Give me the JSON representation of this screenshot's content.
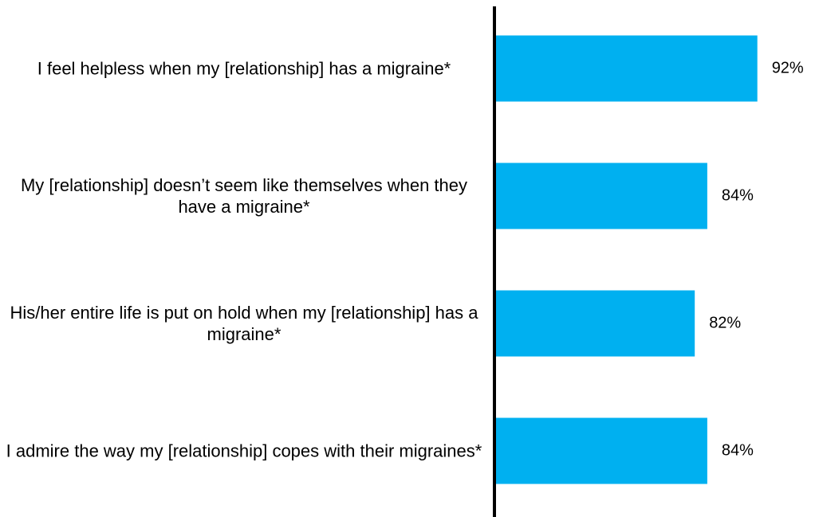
{
  "chart_data": {
    "type": "barh",
    "categories": [
      "I feel helpless when my [relationship] has a migraine*",
      "My [relationship] doesn’t seem like themselves when they have a migraine*",
      "His/her entire life is put on hold when my [relationship] has a migraine*",
      "I admire the way my [relationship] copes with their migraines*"
    ],
    "values": [
      92,
      84,
      82,
      84
    ],
    "value_labels": [
      "92%",
      "84%",
      "82%",
      "84%"
    ],
    "color": "#00b0f0",
    "xlim": [
      50,
      100
    ]
  }
}
